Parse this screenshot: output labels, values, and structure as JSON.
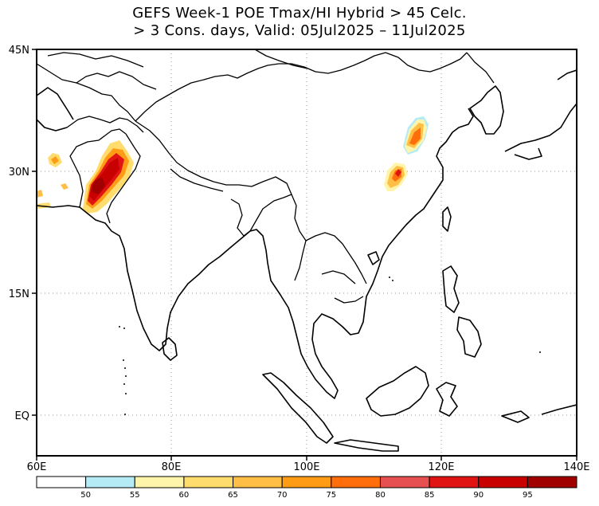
{
  "title": {
    "line1": "GEFS Week-1 POE Tmax/HI Hybrid > 45 Celc.",
    "line2": "> 3 Cons. days, Valid: 05Jul2025 – 11Jul2025"
  },
  "axes": {
    "lat_labels": [
      "45N",
      "30N",
      "15N",
      "EQ"
    ],
    "lon_labels": [
      "60E",
      "80E",
      "100E",
      "120E",
      "140E"
    ]
  },
  "colorbar": {
    "colors": [
      "#ffffff",
      "#b4ebf5",
      "#fff5aa",
      "#ffdc6e",
      "#ffbe46",
      "#ff9b14",
      "#ff6e0a",
      "#e65050",
      "#e11414",
      "#c80000",
      "#a00000"
    ],
    "labels": [
      "50",
      "55",
      "60",
      "65",
      "70",
      "75",
      "80",
      "85",
      "90",
      "95"
    ]
  }
}
